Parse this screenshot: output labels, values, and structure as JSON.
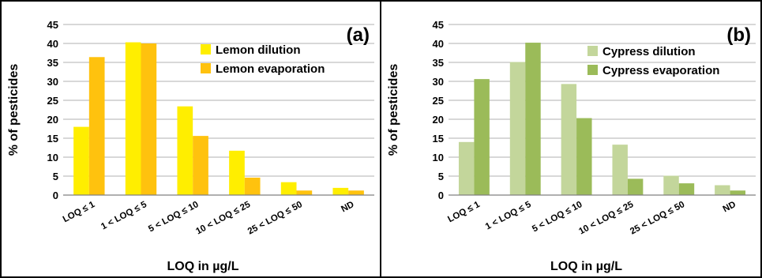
{
  "chart_data": [
    {
      "type": "bar",
      "panel_label": "(a)",
      "categories": [
        "LOQ ≤ 1",
        "1 < LOQ ≤ 5",
        "5 < LOQ ≤ 10",
        "10 < LOQ ≤ 25",
        "25 < LOQ ≤ 50",
        "ND"
      ],
      "series": [
        {
          "name": "Lemon dilution",
          "color": "#ffee00",
          "values": [
            18,
            40.3,
            23.4,
            11.7,
            3.4,
            1.9
          ]
        },
        {
          "name": "Lemon evaporation",
          "color": "#ffc20e",
          "values": [
            36.4,
            40,
            15.6,
            4.6,
            1.2,
            1.2
          ]
        }
      ],
      "xlabel": "LOQ in µg/L",
      "ylabel": "% of pesticides",
      "ylim": [
        0,
        45
      ],
      "yticks": [
        0,
        5,
        10,
        15,
        20,
        25,
        30,
        35,
        40,
        45
      ],
      "grid": true,
      "legend_position": "top-right"
    },
    {
      "type": "bar",
      "panel_label": "(b)",
      "categories": [
        "LOQ ≤ 1",
        "1 < LOQ ≤ 5",
        "5 < LOQ ≤ 10",
        "10 < LOQ ≤ 25",
        "25 < LOQ ≤ 50",
        "ND"
      ],
      "series": [
        {
          "name": "Cypress dilution",
          "color": "#c3d69b",
          "values": [
            14,
            35.1,
            29.3,
            13.3,
            5.1,
            2.6
          ]
        },
        {
          "name": "Cypress evaporation",
          "color": "#9bbb59",
          "values": [
            30.6,
            40.2,
            20.3,
            4.3,
            3.1,
            1.2
          ]
        }
      ],
      "xlabel": "LOQ in µg/L",
      "ylabel": "% of pesticides",
      "ylim": [
        0,
        45
      ],
      "yticks": [
        0,
        5,
        10,
        15,
        20,
        25,
        30,
        35,
        40,
        45
      ],
      "grid": true,
      "legend_position": "top-right"
    }
  ]
}
